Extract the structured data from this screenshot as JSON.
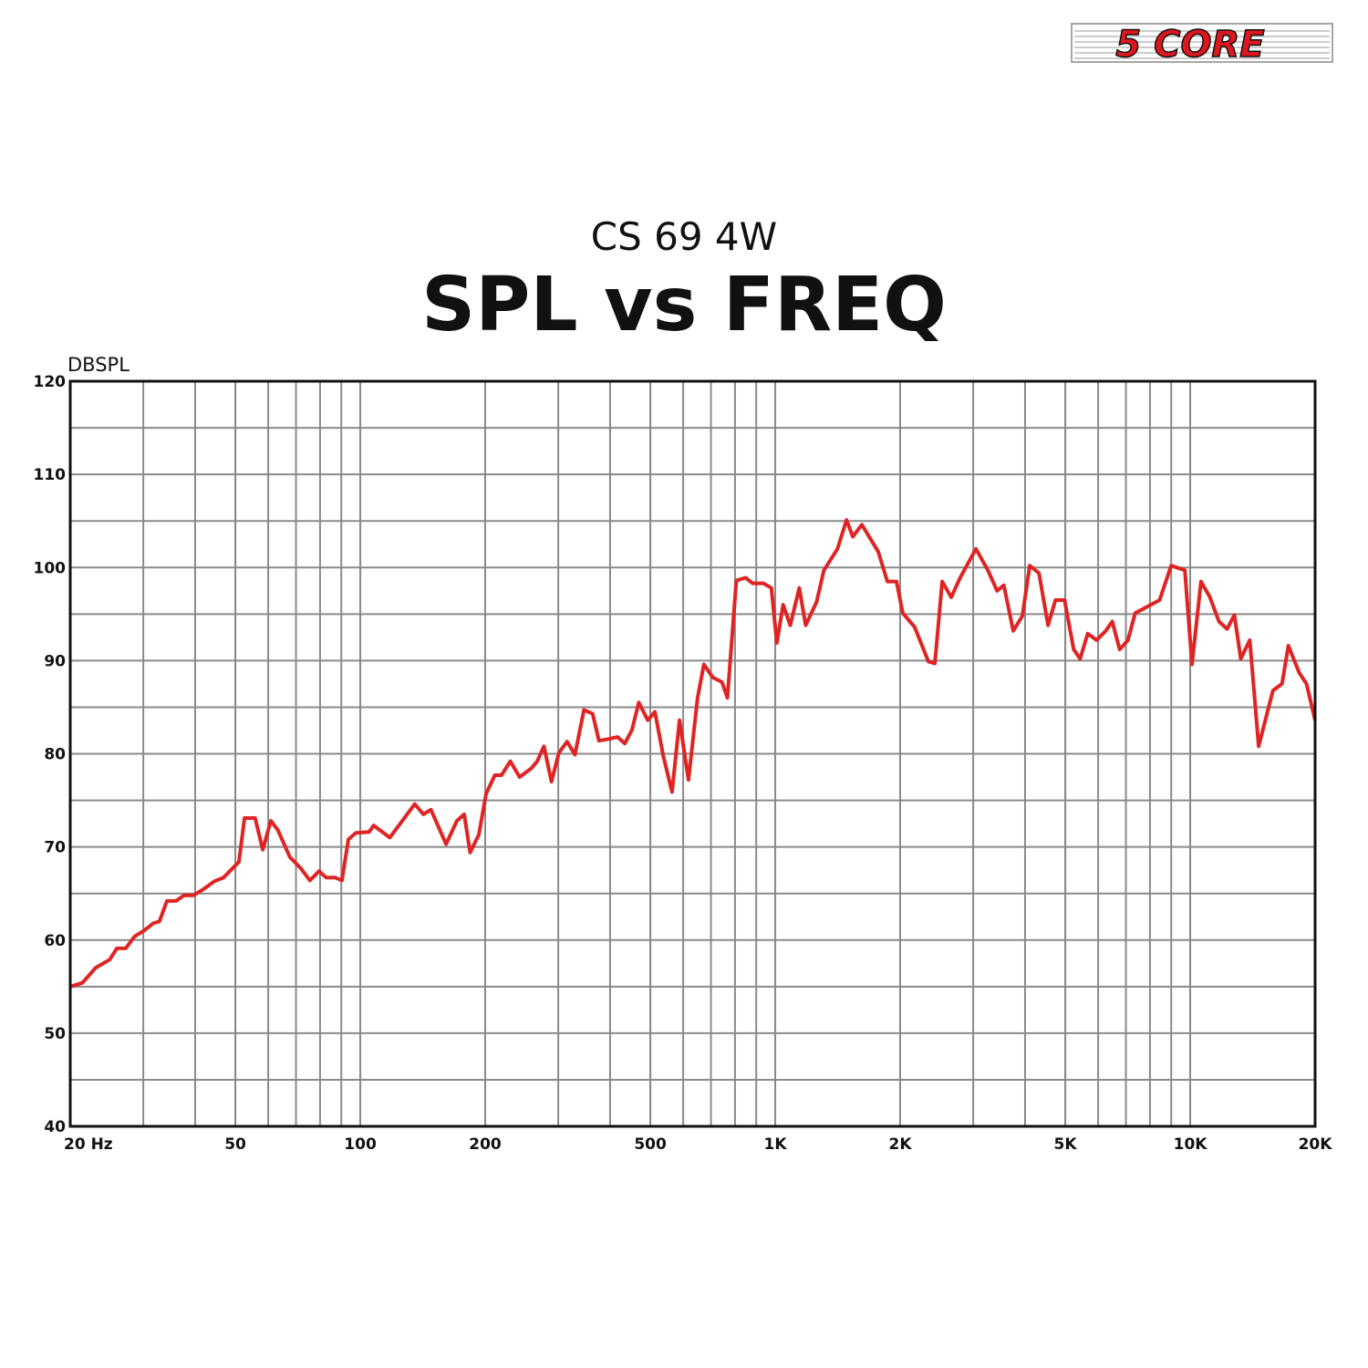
{
  "logo": "5 CORE",
  "chart_data": {
    "type": "line",
    "subtitle": "CS 69 4W",
    "title": "SPL vs FREQ",
    "y_label": "DBSPL",
    "xscale": "log",
    "grid": true,
    "minor_grid": true,
    "xlim": [
      20,
      20000
    ],
    "ylim": [
      40,
      120
    ],
    "xticks": [
      {
        "value": 20,
        "label": "20 Hz"
      },
      50,
      100,
      200,
      500,
      {
        "value": 1000,
        "label": "1K"
      },
      {
        "value": 2000,
        "label": "2K"
      },
      {
        "value": 5000,
        "label": "5K"
      },
      {
        "value": 10000,
        "label": "10K"
      },
      {
        "value": 20000,
        "label": "20K"
      }
    ],
    "yticks": [
      40,
      50,
      60,
      70,
      80,
      90,
      100,
      110,
      120
    ],
    "series": [
      {
        "color": "#e02424",
        "x": [
          20,
          21.4,
          23,
          24.9,
          25.9,
          27.2,
          28.6,
          30.1,
          31.7,
          32.8,
          34.2,
          36,
          37.6,
          39.6,
          41.7,
          44.5,
          46.8,
          48.5,
          51,
          52.6,
          55.8,
          58.2,
          60.9,
          63.3,
          67.7,
          71.9,
          75.6,
          79.6,
          82.8,
          87.1,
          90.3,
          93.6,
          97.5,
          105,
          107.7,
          117.8,
          135.3,
          142,
          148,
          161,
          171,
          178,
          184,
          193,
          201,
          211,
          219,
          230,
          242,
          258,
          267,
          277,
          289,
          301,
          315,
          329,
          346,
          363,
          376,
          398,
          417,
          434,
          452,
          469,
          493,
          513,
          537,
          564,
          588,
          618,
          650,
          673,
          707,
          744,
          767,
          806,
          848,
          882,
          936,
          979,
          1009,
          1045,
          1087,
          1143,
          1184,
          1258,
          1310,
          1413,
          1485,
          1538,
          1617,
          1771,
          1863,
          1960,
          2030,
          2168,
          2340,
          2425,
          2525,
          2655,
          2790,
          3045,
          3255,
          3425,
          3555,
          3745,
          3940,
          4105,
          4320,
          4545,
          4735,
          4980,
          5240,
          5430,
          5660,
          5950,
          6260,
          6490,
          6760,
          7080,
          7370,
          8440,
          9000,
          9710,
          10100,
          10620,
          11160,
          11730,
          12270,
          12780,
          13240,
          13920,
          14620,
          15830,
          16640,
          17240,
          18310,
          19070,
          20000
        ],
        "values": [
          55,
          55.4,
          57,
          57.9,
          59.1,
          59.1,
          60.4,
          61,
          61.8,
          62,
          64.2,
          64.2,
          64.8,
          64.8,
          65.4,
          66.3,
          66.7,
          67.4,
          68.4,
          73.1,
          73.1,
          69.7,
          72.8,
          71.8,
          68.9,
          67.7,
          66.4,
          67.4,
          66.7,
          66.7,
          66.4,
          70.8,
          71.5,
          71.6,
          72.3,
          71,
          74.6,
          73.5,
          74,
          70.3,
          72.8,
          73.5,
          69.4,
          71.3,
          75.7,
          77.7,
          77.7,
          79.2,
          77.5,
          78.4,
          79.2,
          80.8,
          77,
          80.1,
          81.3,
          79.9,
          84.7,
          84.3,
          81.4,
          81.6,
          81.8,
          81.1,
          82.6,
          85.5,
          83.6,
          84.5,
          79.8,
          75.9,
          83.6,
          77.2,
          86,
          89.6,
          88.2,
          87.7,
          86,
          98.6,
          98.9,
          98.3,
          98.3,
          97.8,
          91.9,
          96,
          93.8,
          97.8,
          93.8,
          96.3,
          99.7,
          102,
          105.1,
          103.3,
          104.6,
          101.7,
          98.5,
          98.5,
          95.1,
          93.6,
          89.9,
          89.7,
          98.5,
          96.8,
          98.9,
          102,
          99.7,
          97.5,
          98.1,
          93.2,
          94.8,
          100.2,
          99.4,
          93.8,
          96.5,
          96.5,
          91.2,
          90.2,
          92.9,
          92.2,
          93.2,
          94.2,
          91.2,
          92.2,
          95.1,
          96.5,
          100.2,
          99.7,
          89.6,
          98.5,
          96.8,
          94.2,
          93.4,
          94.9,
          90.2,
          92.2,
          80.8,
          86.8,
          87.5,
          91.6,
          88.7,
          87.5,
          83.6
        ]
      }
    ]
  }
}
